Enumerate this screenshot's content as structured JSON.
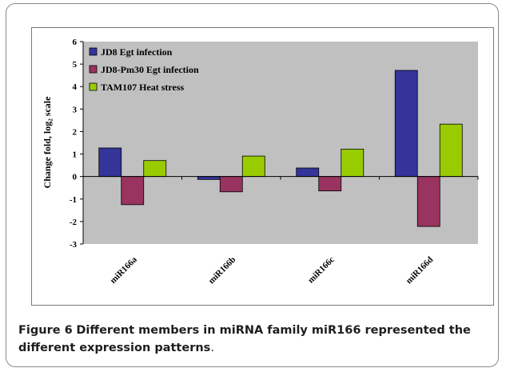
{
  "chart_data": {
    "type": "bar",
    "categories": [
      "miR166a",
      "miR166b",
      "miR166c",
      "miR166d"
    ],
    "series": [
      {
        "name": "JD8 Egt infection",
        "color": "#34349b",
        "values": [
          1.27,
          -0.13,
          0.38,
          4.72
        ]
      },
      {
        "name": "JD8-Pm30 Egt infection",
        "color": "#99335f",
        "values": [
          -1.25,
          -0.68,
          -0.64,
          -2.22
        ]
      },
      {
        "name": "TAM107 Heat stress",
        "color": "#99cc00",
        "values": [
          0.71,
          0.91,
          1.22,
          2.33
        ]
      }
    ],
    "ylabel": "Change fold, log₂ scale",
    "ylim": [
      -3,
      6
    ],
    "yticks": [
      "-3",
      "-2",
      "-1",
      "0",
      "1",
      "2",
      "3",
      "4",
      "5",
      "6"
    ],
    "grid": false,
    "legend_position": "top-left",
    "plot_background": "#c0c0c0"
  },
  "caption": {
    "label": "Figure 6",
    "title": "Different members in miRNA family miR166 represented the different expression patterns",
    "end": "."
  }
}
